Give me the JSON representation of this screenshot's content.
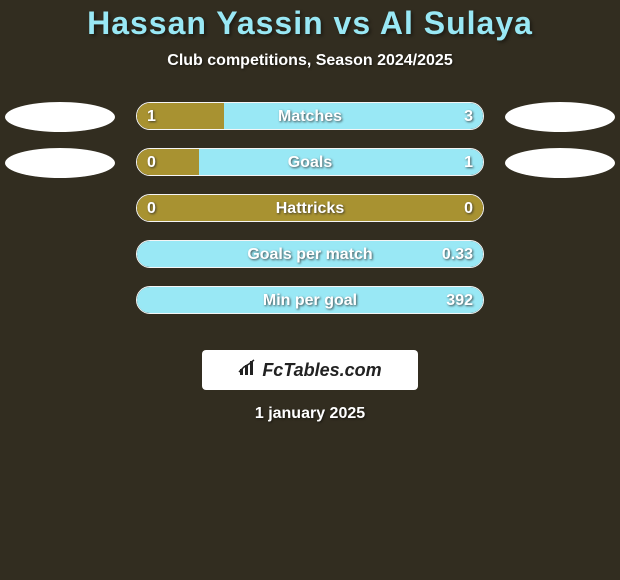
{
  "title": "Hassan Yassin vs Al Sulaya",
  "subtitle": "Club competitions, Season 2024/2025",
  "colors": {
    "background": "#322d20",
    "title": "#99e8f5",
    "left_bar": "#a89231",
    "right_bar": "#99e8f5",
    "ellipse": "#ffffff",
    "text": "#ffffff"
  },
  "stats": [
    {
      "label": "Matches",
      "left_value": "1",
      "right_value": "3",
      "left_pct": 25,
      "right_pct": 75,
      "show_left_ellipse": true,
      "show_right_ellipse": true
    },
    {
      "label": "Goals",
      "left_value": "0",
      "right_value": "1",
      "left_pct": 18,
      "right_pct": 82,
      "show_left_ellipse": true,
      "show_right_ellipse": true
    },
    {
      "label": "Hattricks",
      "left_value": "0",
      "right_value": "0",
      "left_pct": 100,
      "right_pct": 0,
      "show_left_ellipse": false,
      "show_right_ellipse": false
    },
    {
      "label": "Goals per match",
      "left_value": "",
      "right_value": "0.33",
      "left_pct": 0,
      "right_pct": 100,
      "show_left_ellipse": false,
      "show_right_ellipse": false
    },
    {
      "label": "Min per goal",
      "left_value": "",
      "right_value": "392",
      "left_pct": 0,
      "right_pct": 100,
      "show_left_ellipse": false,
      "show_right_ellipse": false
    }
  ],
  "logo": "FcTables.com",
  "date": "1 january 2025"
}
